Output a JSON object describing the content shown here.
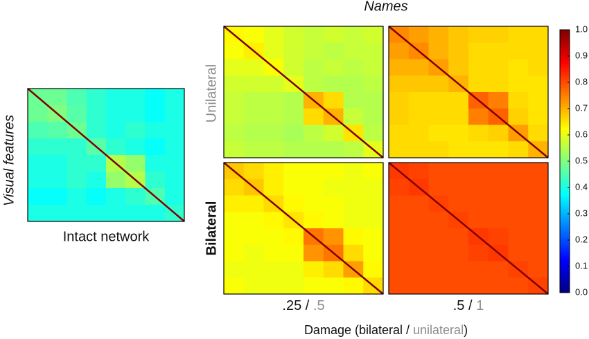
{
  "figure": {
    "title": "Names",
    "ylabel": "Visual features",
    "row_labels": [
      "Unilateral",
      "Bilateral"
    ],
    "col_labels": [
      {
        "bilateral": ".25",
        "sep": " / ",
        "unilateral": ".5"
      },
      {
        "bilateral": ".5",
        "sep": " / ",
        "unilateral": "1"
      }
    ],
    "xlabel": {
      "before": "Damage (bilateral / ",
      "gray": "unilateral",
      "after": ")"
    }
  },
  "colorbar": {
    "colormap": "jet",
    "clim": [
      0,
      1
    ],
    "ticks": [
      {
        "value": 0,
        "label": "0.0"
      },
      0.1,
      0.2,
      0.3,
      0.4,
      0.5,
      0.6,
      0.7,
      0.8,
      0.9,
      {
        "value": 1,
        "label": "1.0"
      }
    ]
  },
  "chart_data": [
    {
      "type": "heatmap",
      "xlabel": "Intact network",
      "diagonal": 1.0,
      "values": [
        [
          0.48,
          0.48,
          0.45,
          0.42,
          0.4,
          0.4,
          0.38,
          0.4
        ],
        [
          0.48,
          0.5,
          0.46,
          0.42,
          0.4,
          0.4,
          0.38,
          0.4
        ],
        [
          0.45,
          0.46,
          0.48,
          0.42,
          0.4,
          0.42,
          0.4,
          0.4
        ],
        [
          0.42,
          0.42,
          0.42,
          0.46,
          0.42,
          0.4,
          0.38,
          0.4
        ],
        [
          0.4,
          0.4,
          0.42,
          0.42,
          0.55,
          0.52,
          0.4,
          0.4
        ],
        [
          0.4,
          0.4,
          0.42,
          0.4,
          0.52,
          0.55,
          0.42,
          0.4
        ],
        [
          0.38,
          0.38,
          0.4,
          0.38,
          0.4,
          0.42,
          0.45,
          0.4
        ],
        [
          0.4,
          0.4,
          0.4,
          0.4,
          0.4,
          0.4,
          0.4,
          0.42
        ]
      ]
    },
    {
      "type": "heatmap",
      "diagonal": 1.0,
      "values": [
        [
          0.63,
          0.62,
          0.6,
          0.58,
          0.57,
          0.58,
          0.57,
          0.58
        ],
        [
          0.62,
          0.64,
          0.6,
          0.58,
          0.57,
          0.56,
          0.57,
          0.57
        ],
        [
          0.6,
          0.6,
          0.62,
          0.58,
          0.56,
          0.57,
          0.56,
          0.57
        ],
        [
          0.58,
          0.58,
          0.58,
          0.6,
          0.56,
          0.55,
          0.55,
          0.56
        ],
        [
          0.57,
          0.56,
          0.56,
          0.55,
          0.7,
          0.66,
          0.55,
          0.55
        ],
        [
          0.57,
          0.56,
          0.56,
          0.55,
          0.66,
          0.7,
          0.57,
          0.55
        ],
        [
          0.56,
          0.55,
          0.55,
          0.54,
          0.56,
          0.58,
          0.65,
          0.56
        ],
        [
          0.57,
          0.56,
          0.56,
          0.55,
          0.55,
          0.55,
          0.56,
          0.6
        ]
      ]
    },
    {
      "type": "heatmap",
      "diagonal": 1.0,
      "values": [
        [
          0.74,
          0.72,
          0.7,
          0.68,
          0.67,
          0.67,
          0.66,
          0.66
        ],
        [
          0.72,
          0.74,
          0.7,
          0.68,
          0.66,
          0.66,
          0.66,
          0.66
        ],
        [
          0.7,
          0.7,
          0.72,
          0.68,
          0.66,
          0.66,
          0.65,
          0.66
        ],
        [
          0.68,
          0.68,
          0.68,
          0.7,
          0.66,
          0.66,
          0.65,
          0.65
        ],
        [
          0.67,
          0.66,
          0.66,
          0.66,
          0.78,
          0.75,
          0.66,
          0.65
        ],
        [
          0.67,
          0.66,
          0.66,
          0.66,
          0.75,
          0.78,
          0.67,
          0.65
        ],
        [
          0.66,
          0.66,
          0.65,
          0.65,
          0.66,
          0.67,
          0.72,
          0.66
        ],
        [
          0.66,
          0.66,
          0.66,
          0.65,
          0.65,
          0.65,
          0.66,
          0.7
        ]
      ]
    },
    {
      "type": "heatmap",
      "diagonal": 1.0,
      "values": [
        [
          0.68,
          0.66,
          0.64,
          0.62,
          0.62,
          0.62,
          0.61,
          0.62
        ],
        [
          0.66,
          0.68,
          0.64,
          0.62,
          0.62,
          0.61,
          0.61,
          0.61
        ],
        [
          0.64,
          0.64,
          0.66,
          0.63,
          0.62,
          0.62,
          0.61,
          0.61
        ],
        [
          0.62,
          0.62,
          0.63,
          0.65,
          0.63,
          0.62,
          0.61,
          0.61
        ],
        [
          0.62,
          0.62,
          0.62,
          0.63,
          0.76,
          0.73,
          0.63,
          0.62
        ],
        [
          0.62,
          0.61,
          0.62,
          0.62,
          0.73,
          0.76,
          0.66,
          0.62
        ],
        [
          0.61,
          0.61,
          0.61,
          0.61,
          0.64,
          0.66,
          0.72,
          0.63
        ],
        [
          0.62,
          0.61,
          0.61,
          0.61,
          0.62,
          0.62,
          0.63,
          0.66
        ]
      ]
    },
    {
      "type": "heatmap",
      "diagonal": 1.0,
      "values": [
        [
          0.82,
          0.81,
          0.8,
          0.8,
          0.8,
          0.8,
          0.8,
          0.8
        ],
        [
          0.81,
          0.82,
          0.8,
          0.8,
          0.8,
          0.8,
          0.8,
          0.8
        ],
        [
          0.8,
          0.8,
          0.81,
          0.8,
          0.8,
          0.8,
          0.8,
          0.8
        ],
        [
          0.8,
          0.8,
          0.8,
          0.81,
          0.8,
          0.8,
          0.8,
          0.8
        ],
        [
          0.8,
          0.8,
          0.8,
          0.8,
          0.82,
          0.81,
          0.8,
          0.8
        ],
        [
          0.8,
          0.8,
          0.8,
          0.8,
          0.81,
          0.82,
          0.8,
          0.8
        ],
        [
          0.8,
          0.8,
          0.8,
          0.8,
          0.8,
          0.8,
          0.81,
          0.8
        ],
        [
          0.8,
          0.8,
          0.8,
          0.8,
          0.8,
          0.8,
          0.8,
          0.81
        ]
      ]
    }
  ]
}
